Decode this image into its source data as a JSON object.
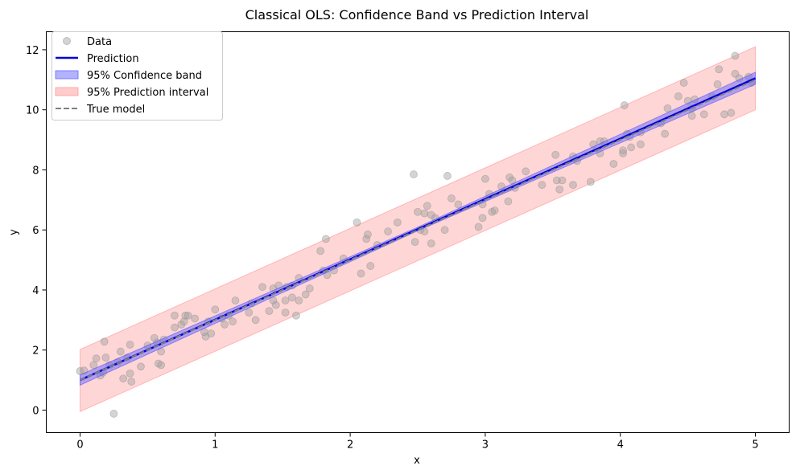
{
  "chart_data": {
    "type": "scatter",
    "title": "Classical OLS: Confidence Band vs Prediction Interval",
    "xlabel": "x",
    "ylabel": "y",
    "xlim": [
      -0.25,
      5.25
    ],
    "ylim": [
      -0.75,
      12.6
    ],
    "xticks": [
      0,
      1,
      2,
      3,
      4,
      5
    ],
    "yticks": [
      0,
      2,
      4,
      6,
      8,
      10,
      12
    ],
    "grid": false,
    "legend_position": "top-left",
    "legend": [
      {
        "label": "Data",
        "kind": "marker",
        "color": "#a0a0a0"
      },
      {
        "label": "Prediction",
        "kind": "line",
        "color": "#0000dd"
      },
      {
        "label": "95% Confidence band",
        "kind": "patch",
        "color": "#6666ff"
      },
      {
        "label": "95% Prediction interval",
        "kind": "patch",
        "color": "#ff9999"
      },
      {
        "label": "True model",
        "kind": "dashed",
        "color": "#808080"
      }
    ],
    "prediction_line": {
      "x": [
        0,
        5
      ],
      "y": [
        1.0,
        11.05
      ]
    },
    "true_model": {
      "x": [
        0,
        5
      ],
      "y": [
        1.0,
        11.0
      ]
    },
    "confidence_band": {
      "x": [
        0,
        2.5,
        5
      ],
      "lower": [
        0.83,
        5.97,
        10.85
      ],
      "upper": [
        1.17,
        6.09,
        11.25
      ]
    },
    "prediction_interval": {
      "x": [
        0,
        5
      ],
      "lower": [
        -0.05,
        10.0
      ],
      "upper": [
        2.02,
        12.1
      ]
    },
    "points": [
      [
        0.0,
        1.3
      ],
      [
        0.03,
        1.32
      ],
      [
        0.1,
        1.5
      ],
      [
        0.12,
        1.72
      ],
      [
        0.15,
        1.15
      ],
      [
        0.17,
        1.25
      ],
      [
        0.18,
        2.28
      ],
      [
        0.19,
        1.75
      ],
      [
        0.22,
        1.5
      ],
      [
        0.25,
        -0.12
      ],
      [
        0.28,
        1.6
      ],
      [
        0.3,
        1.95
      ],
      [
        0.32,
        1.05
      ],
      [
        0.35,
        1.75
      ],
      [
        0.37,
        1.22
      ],
      [
        0.37,
        2.18
      ],
      [
        0.38,
        0.95
      ],
      [
        0.45,
        1.45
      ],
      [
        0.5,
        2.15
      ],
      [
        0.55,
        2.4
      ],
      [
        0.57,
        2.25
      ],
      [
        0.58,
        1.55
      ],
      [
        0.6,
        1.5
      ],
      [
        0.6,
        1.95
      ],
      [
        0.62,
        2.35
      ],
      [
        0.7,
        2.75
      ],
      [
        0.7,
        3.15
      ],
      [
        0.75,
        2.85
      ],
      [
        0.77,
        2.95
      ],
      [
        0.78,
        3.15
      ],
      [
        0.8,
        3.15
      ],
      [
        0.85,
        3.05
      ],
      [
        0.92,
        2.6
      ],
      [
        0.93,
        2.45
      ],
      [
        0.95,
        2.95
      ],
      [
        0.97,
        2.55
      ],
      [
        1.0,
        3.35
      ],
      [
        1.05,
        3.05
      ],
      [
        1.07,
        2.85
      ],
      [
        1.1,
        3.15
      ],
      [
        1.13,
        2.95
      ],
      [
        1.15,
        3.65
      ],
      [
        1.25,
        3.25
      ],
      [
        1.27,
        3.55
      ],
      [
        1.3,
        3.0
      ],
      [
        1.35,
        4.1
      ],
      [
        1.4,
        3.3
      ],
      [
        1.43,
        3.65
      ],
      [
        1.43,
        4.05
      ],
      [
        1.45,
        3.5
      ],
      [
        1.47,
        4.15
      ],
      [
        1.52,
        3.25
      ],
      [
        1.52,
        3.65
      ],
      [
        1.53,
        4.1
      ],
      [
        1.57,
        3.75
      ],
      [
        1.57,
        4.15
      ],
      [
        1.6,
        3.15
      ],
      [
        1.62,
        4.4
      ],
      [
        1.62,
        3.65
      ],
      [
        1.67,
        3.85
      ],
      [
        1.7,
        4.05
      ],
      [
        1.78,
        5.3
      ],
      [
        1.8,
        4.65
      ],
      [
        1.82,
        5.7
      ],
      [
        1.83,
        4.5
      ],
      [
        1.88,
        4.65
      ],
      [
        1.95,
        5.05
      ],
      [
        2.05,
        6.25
      ],
      [
        2.08,
        4.55
      ],
      [
        2.12,
        5.7
      ],
      [
        2.13,
        5.85
      ],
      [
        2.15,
        4.8
      ],
      [
        2.2,
        5.5
      ],
      [
        2.28,
        5.95
      ],
      [
        2.35,
        6.25
      ],
      [
        2.47,
        7.85
      ],
      [
        2.48,
        5.6
      ],
      [
        2.5,
        6.6
      ],
      [
        2.52,
        6.0
      ],
      [
        2.55,
        6.55
      ],
      [
        2.55,
        5.95
      ],
      [
        2.57,
        6.8
      ],
      [
        2.6,
        5.55
      ],
      [
        2.6,
        6.5
      ],
      [
        2.63,
        6.4
      ],
      [
        2.7,
        6.0
      ],
      [
        2.72,
        7.8
      ],
      [
        2.75,
        7.05
      ],
      [
        2.8,
        6.85
      ],
      [
        2.95,
        6.1
      ],
      [
        2.98,
        6.4
      ],
      [
        2.98,
        6.85
      ],
      [
        3.0,
        7.7
      ],
      [
        3.03,
        7.2
      ],
      [
        3.05,
        6.6
      ],
      [
        3.07,
        6.65
      ],
      [
        3.12,
        7.45
      ],
      [
        3.17,
        6.95
      ],
      [
        3.18,
        7.75
      ],
      [
        3.2,
        7.65
      ],
      [
        3.22,
        7.4
      ],
      [
        3.3,
        7.95
      ],
      [
        3.42,
        7.5
      ],
      [
        3.52,
        8.5
      ],
      [
        3.53,
        7.65
      ],
      [
        3.55,
        7.35
      ],
      [
        3.57,
        7.65
      ],
      [
        3.65,
        8.45
      ],
      [
        3.65,
        7.5
      ],
      [
        3.68,
        8.3
      ],
      [
        3.78,
        7.6
      ],
      [
        3.8,
        8.85
      ],
      [
        3.85,
        8.55
      ],
      [
        3.85,
        8.95
      ],
      [
        3.88,
        8.95
      ],
      [
        3.95,
        8.2
      ],
      [
        4.02,
        8.55
      ],
      [
        4.02,
        8.65
      ],
      [
        4.03,
        10.15
      ],
      [
        4.05,
        9.2
      ],
      [
        4.07,
        9.1
      ],
      [
        4.08,
        8.75
      ],
      [
        4.15,
        9.25
      ],
      [
        4.15,
        8.85
      ],
      [
        4.3,
        9.55
      ],
      [
        4.33,
        9.2
      ],
      [
        4.35,
        10.05
      ],
      [
        4.43,
        10.45
      ],
      [
        4.47,
        10.9
      ],
      [
        4.5,
        10.3
      ],
      [
        4.53,
        10.05
      ],
      [
        4.53,
        9.8
      ],
      [
        4.55,
        10.35
      ],
      [
        4.62,
        9.85
      ],
      [
        4.68,
        10.45
      ],
      [
        4.72,
        10.85
      ],
      [
        4.73,
        11.35
      ],
      [
        4.77,
        9.85
      ],
      [
        4.82,
        9.9
      ],
      [
        4.85,
        11.2
      ],
      [
        4.85,
        11.8
      ],
      [
        4.88,
        11.05
      ],
      [
        4.95,
        11.1
      ],
      [
        4.97,
        10.9
      ]
    ]
  }
}
